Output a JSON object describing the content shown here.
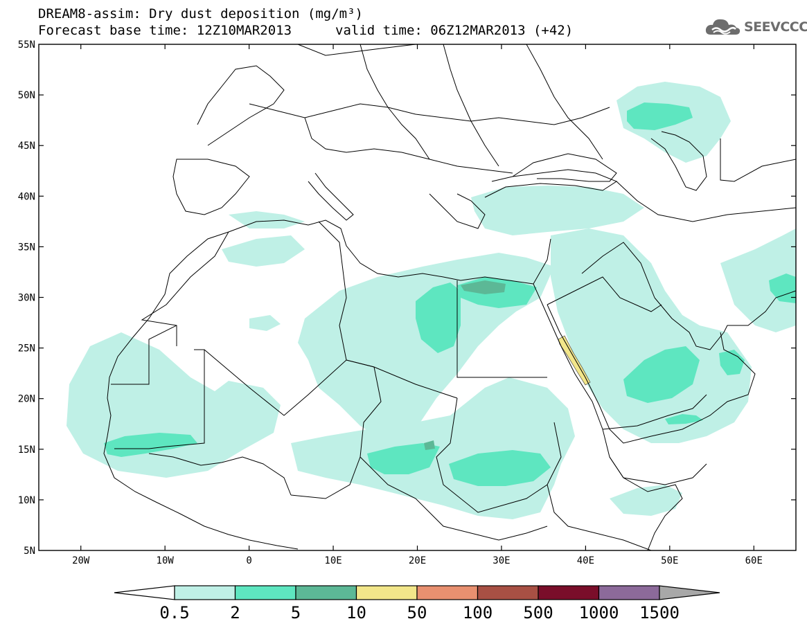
{
  "header": {
    "title_line1": "DREAM8-assim: Dry dust deposition (mg/m³)",
    "title_line2_left": "Forecast base time: 12Z10MAR2013",
    "title_line2_right": "valid time: 06Z12MAR2013 (+42)"
  },
  "logo": {
    "text": "SEEVCCC",
    "icon": "cloud-logo-icon"
  },
  "map": {
    "y_ticks": [
      "55N",
      "50N",
      "45N",
      "40N",
      "35N",
      "30N",
      "25N",
      "20N",
      "15N",
      "10N",
      "5N"
    ],
    "x_ticks": [
      "20W",
      "10W",
      "0",
      "10E",
      "20E",
      "30E",
      "40E",
      "50E",
      "60E"
    ],
    "lon_range": [
      -25,
      65
    ],
    "lat_range": [
      5,
      55
    ]
  },
  "colorbar": {
    "labels": [
      "0.5",
      "2",
      "5",
      "10",
      "50",
      "100",
      "500",
      "1000",
      "1500"
    ],
    "colors": [
      "#bff0e6",
      "#5ee6c0",
      "#5cb896",
      "#f2e68a",
      "#e89070",
      "#a85044",
      "#7a0e2a",
      "#8c6a9a"
    ],
    "under_color": "#ffffff",
    "over_color": "#a8a8a8"
  }
}
